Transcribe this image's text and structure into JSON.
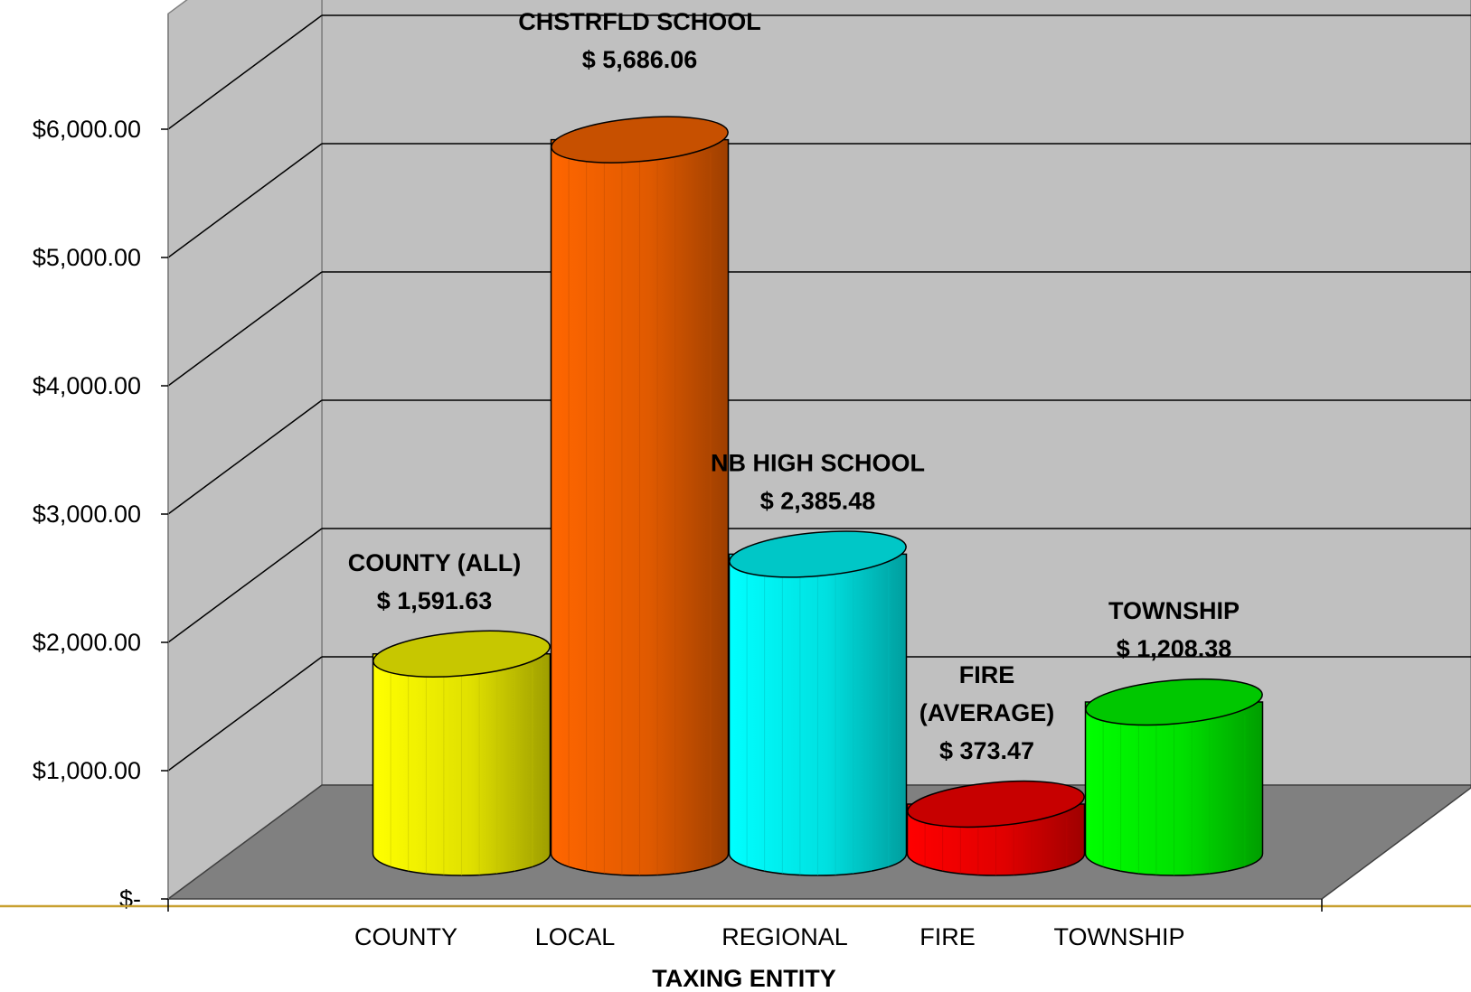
{
  "chart_data": {
    "type": "bar",
    "style": "3d-cylinder",
    "categories": [
      "COUNTY",
      "LOCAL",
      "REGIONAL",
      "FIRE",
      "TOWNSHIP"
    ],
    "values": [
      1591.63,
      5686.06,
      2385.48,
      373.47,
      1208.38
    ],
    "data_labels": [
      [
        "COUNTY (ALL)",
        "$ 1,591.63"
      ],
      [
        "CHSTRFLD SCHOOL",
        "$ 5,686.06"
      ],
      [
        "NB HIGH SCHOOL",
        "$ 2,385.48"
      ],
      [
        "FIRE",
        "(AVERAGE)",
        "$ 373.47"
      ],
      [
        "TOWNSHIP",
        "$ 1,208.38"
      ]
    ],
    "colors": [
      "#ffff00",
      "#ff6600",
      "#00ffff",
      "#ff0000",
      "#00ff00"
    ],
    "y_ticks": [
      0,
      1000,
      2000,
      3000,
      4000,
      5000,
      6000
    ],
    "y_tick_labels": [
      "$-",
      "$1,000.00",
      "$2,000.00",
      "$3,000.00",
      "$4,000.00",
      "$5,000.00",
      "$6,000.00"
    ],
    "ylim": [
      0,
      6000
    ],
    "xlabel": "TAXING ENTITY",
    "ylabel": "",
    "title": "",
    "grid": true,
    "wall_color": "#c0c0c0",
    "floor_color": "#808080",
    "rule_color": "#c8a030"
  }
}
